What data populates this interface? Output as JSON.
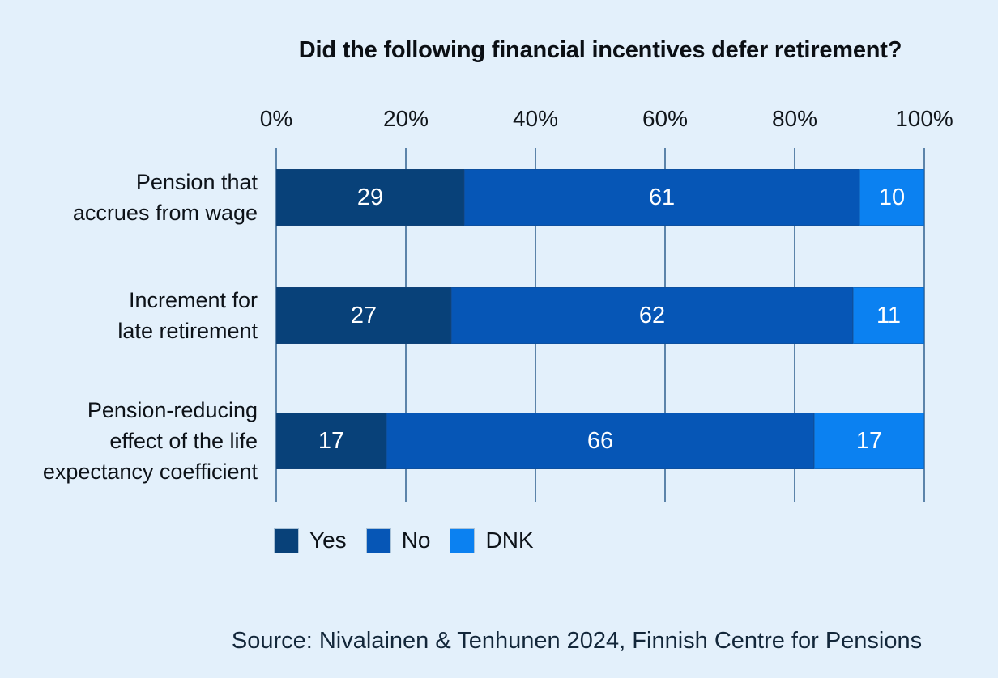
{
  "page": {
    "background_color": "#e3f0fb"
  },
  "chart_data": {
    "type": "bar",
    "orientation": "horizontal",
    "stacked": true,
    "title": "Did the following financial incentives defer retirement?",
    "categories": [
      "Pension that accrues from wage",
      "Increment for late retirement",
      "Pension-reducing effect of the life expectancy coefficient"
    ],
    "category_lines": [
      [
        "Pension that",
        "accrues from wage"
      ],
      [
        "Increment for",
        "late retirement"
      ],
      [
        "Pension-reducing",
        "effect of the life",
        "expectancy coefficient"
      ]
    ],
    "series": [
      {
        "name": "Yes",
        "color": "#084179",
        "values": [
          29,
          27,
          17
        ]
      },
      {
        "name": "No",
        "color": "#0656b6",
        "values": [
          61,
          62,
          66
        ]
      },
      {
        "name": "DNK",
        "color": "#0b81f1",
        "values": [
          10,
          11,
          17
        ]
      }
    ],
    "x_axis": {
      "position": "top",
      "min": 0,
      "max": 100,
      "ticks": [
        "0%",
        "20%",
        "40%",
        "60%",
        "80%",
        "100%"
      ]
    },
    "grid": true,
    "gridline_color": "#5c84aa",
    "value_label_color": "#ffffff",
    "legend_position": "bottom"
  },
  "footer": {
    "source": "Source: Nivalainen & Tenhunen 2024, Finnish Centre for Pensions"
  }
}
